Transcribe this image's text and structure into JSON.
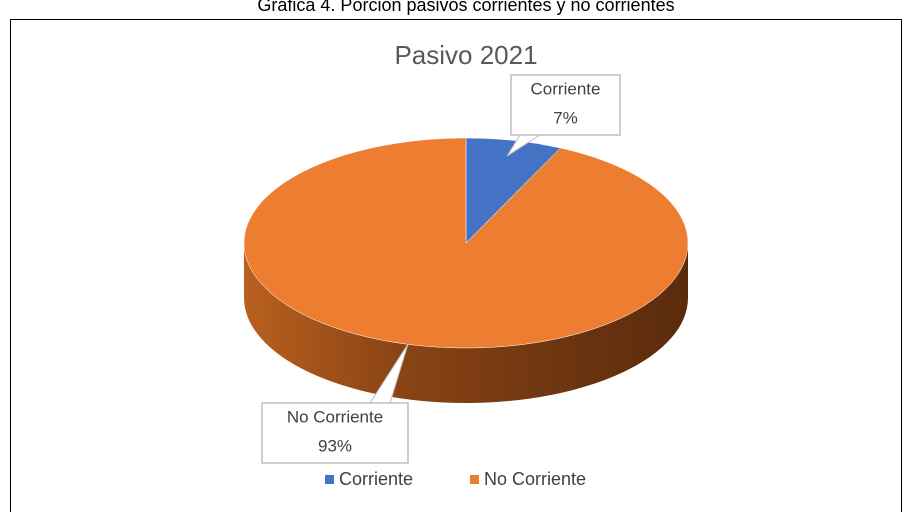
{
  "caption": "Gráfica 4. Porción pasivos corrientes y no corrientes",
  "chart_data": {
    "type": "pie",
    "title": "Pasivo 2021",
    "categories": [
      "Corriente",
      "No Corriente"
    ],
    "values": [
      7,
      93
    ],
    "value_labels": [
      "7%",
      "93%"
    ],
    "colors": [
      "#4472c4",
      "#ed7d31"
    ],
    "legend": "bottom"
  }
}
